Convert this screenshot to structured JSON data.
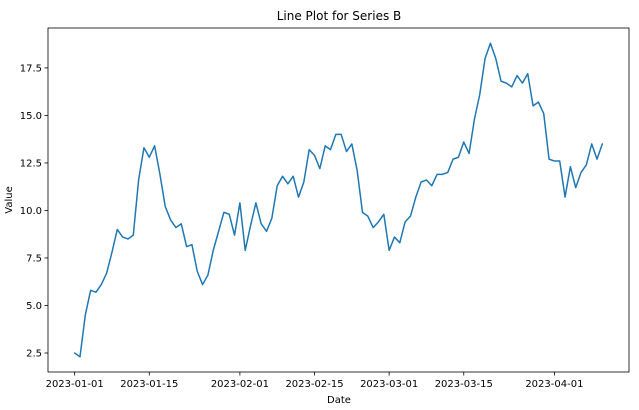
{
  "chart_data": {
    "type": "line",
    "title": "Line Plot for Series B",
    "xlabel": "Date",
    "ylabel": "Value",
    "x_start": "2023-01-01",
    "x_end": "2023-04-10",
    "xlim": [
      "2022-12-27",
      "2023-04-15"
    ],
    "ylim": [
      1.5,
      19.6
    ],
    "grid": false,
    "color": "#1f77b4",
    "x_ticks": [
      {
        "date": "2023-01-01",
        "label": "2023-01-01"
      },
      {
        "date": "2023-01-15",
        "label": "2023-01-15"
      },
      {
        "date": "2023-02-01",
        "label": "2023-02-01"
      },
      {
        "date": "2023-02-15",
        "label": "2023-02-15"
      },
      {
        "date": "2023-03-01",
        "label": "2023-03-01"
      },
      {
        "date": "2023-03-15",
        "label": "2023-03-15"
      },
      {
        "date": "2023-04-01",
        "label": "2023-04-01"
      }
    ],
    "y_ticks": [
      {
        "value": 2.5,
        "label": "2.5"
      },
      {
        "value": 5.0,
        "label": "5.0"
      },
      {
        "value": 7.5,
        "label": "7.5"
      },
      {
        "value": 10.0,
        "label": "10.0"
      },
      {
        "value": 12.5,
        "label": "12.5"
      },
      {
        "value": 15.0,
        "label": "15.0"
      },
      {
        "value": 17.5,
        "label": "17.5"
      }
    ],
    "series": [
      {
        "values": [
          2.5,
          2.3,
          4.5,
          5.8,
          5.7,
          6.1,
          6.7,
          7.8,
          9.0,
          8.6,
          8.5,
          8.7,
          11.6,
          13.3,
          12.8,
          13.4,
          11.9,
          10.2,
          9.5,
          9.1,
          9.3,
          8.1,
          8.2,
          6.8,
          6.1,
          6.6,
          7.9,
          8.9,
          9.9,
          9.8,
          8.7,
          10.4,
          7.9,
          9.2,
          10.4,
          9.3,
          8.9,
          9.6,
          11.3,
          11.8,
          11.4,
          11.8,
          10.7,
          11.5,
          13.2,
          12.9,
          12.2,
          13.4,
          13.2,
          14.0,
          14.0,
          13.1,
          13.5,
          12.1,
          9.9,
          9.7,
          9.1,
          9.4,
          9.8,
          7.9,
          8.6,
          8.3,
          9.4,
          9.7,
          10.7,
          11.5,
          11.6,
          11.3,
          11.9,
          11.9,
          12.0,
          12.7,
          12.8,
          13.6,
          13.0,
          14.8,
          16.1,
          18.0,
          18.8,
          18.0,
          16.8,
          16.7,
          16.5,
          17.1,
          16.7,
          17.2,
          15.5,
          15.7,
          15.1,
          12.7,
          12.6,
          12.6,
          10.7,
          12.3,
          11.2,
          12.0,
          12.4,
          13.5,
          12.7,
          13.5
        ]
      }
    ]
  }
}
